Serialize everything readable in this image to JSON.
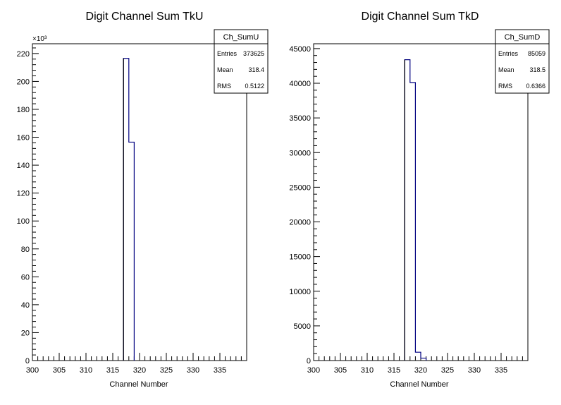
{
  "chart_data": [
    {
      "type": "bar",
      "title": "Digit Channel Sum TkU",
      "xlabel": "Channel Number",
      "ylabel": "",
      "xlim": [
        300,
        340
      ],
      "ylim": [
        0,
        227000
      ],
      "y_multiplier_label": "×10³",
      "y_scale_factor": 1000,
      "x_ticks": [
        300,
        305,
        310,
        315,
        320,
        325,
        330,
        335
      ],
      "y_ticks": [
        0,
        20000,
        40000,
        60000,
        80000,
        100000,
        120000,
        140000,
        160000,
        180000,
        200000,
        220000
      ],
      "y_tick_labels": [
        "0",
        "20",
        "40",
        "60",
        "80",
        "100",
        "120",
        "140",
        "160",
        "180",
        "200",
        "220"
      ],
      "bin_width": 1,
      "bins": [
        {
          "x": 318,
          "value": 216500
        },
        {
          "x": 319,
          "value": 156500
        }
      ],
      "stats": {
        "name": "Ch_SumU",
        "rows": [
          {
            "label": "Entries",
            "value": "373625"
          },
          {
            "label": "Mean",
            "value": "318.4"
          },
          {
            "label": "RMS",
            "value": "0.5122"
          }
        ]
      }
    },
    {
      "type": "bar",
      "title": "Digit Channel Sum TkD",
      "xlabel": "Channel Number",
      "ylabel": "",
      "xlim": [
        300,
        340
      ],
      "ylim": [
        0,
        45700
      ],
      "x_ticks": [
        300,
        305,
        310,
        315,
        320,
        325,
        330,
        335
      ],
      "y_ticks": [
        0,
        5000,
        10000,
        15000,
        20000,
        25000,
        30000,
        35000,
        40000,
        45000
      ],
      "y_tick_labels": [
        "0",
        "5000",
        "10000",
        "15000",
        "20000",
        "25000",
        "30000",
        "35000",
        "40000",
        "45000"
      ],
      "bin_width": 1,
      "bins": [
        {
          "x": 318,
          "value": 43400
        },
        {
          "x": 319,
          "value": 40100
        },
        {
          "x": 320,
          "value": 1200
        },
        {
          "x": 321,
          "value": 350
        }
      ],
      "stats": {
        "name": "Ch_SumD",
        "rows": [
          {
            "label": "Entries",
            "value": "85059"
          },
          {
            "label": "Mean",
            "value": "318.5"
          },
          {
            "label": "RMS",
            "value": "0.6366"
          }
        ]
      }
    }
  ],
  "colors": {
    "histogram_line": "#000080",
    "frame": "#000000"
  }
}
